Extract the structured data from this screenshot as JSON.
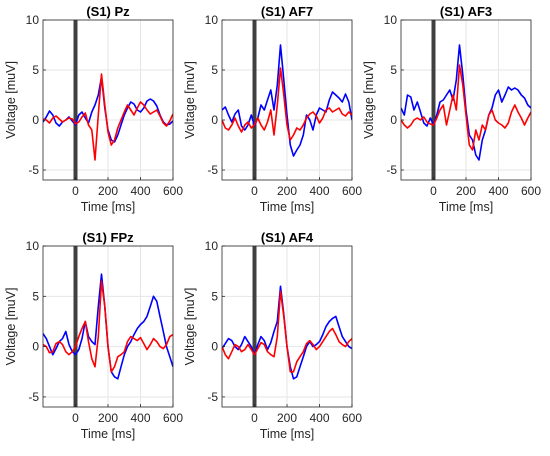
{
  "figure": {
    "background": "#ffffff",
    "grid_color": "#e6e6e6",
    "axis_color": "#262626",
    "marker_color": "#404040"
  },
  "chart_data": [
    {
      "type": "line",
      "title": "(S1) Pz",
      "xlabel": "Time [ms]",
      "ylabel": "Voltage [muV]",
      "xlim": [
        -200,
        600
      ],
      "ylim": [
        -6,
        10
      ],
      "xticks": [
        0,
        200,
        400,
        600
      ],
      "yticks": [
        -5,
        0,
        5,
        10
      ],
      "grid": true,
      "stimulus_marker_x": 0,
      "series": [
        {
          "color": "#0000ff",
          "x": [
            -200,
            -180,
            -160,
            -140,
            -120,
            -100,
            -80,
            -60,
            -40,
            -20,
            0,
            20,
            40,
            60,
            80,
            100,
            120,
            140,
            160,
            180,
            200,
            220,
            240,
            260,
            280,
            300,
            320,
            340,
            360,
            380,
            400,
            420,
            440,
            460,
            480,
            500,
            520,
            540,
            560,
            580,
            600
          ],
          "values": [
            -0.2,
            0.3,
            0.9,
            0.5,
            -0.3,
            -0.6,
            -0.2,
            0.0,
            0.3,
            -0.1,
            -0.5,
            0.5,
            0.8,
            0.2,
            -0.3,
            0.8,
            1.5,
            2.5,
            4.3,
            1.2,
            -1.0,
            -2.0,
            -2.2,
            -1.5,
            -0.5,
            0.5,
            1.2,
            1.8,
            1.6,
            1.0,
            0.8,
            1.2,
            1.9,
            2.1,
            1.9,
            1.4,
            0.5,
            -0.2,
            -0.5,
            -0.4,
            -0.1
          ]
        },
        {
          "color": "#ff0000",
          "x": [
            -200,
            -180,
            -160,
            -140,
            -120,
            -100,
            -80,
            -60,
            -40,
            -20,
            0,
            20,
            40,
            60,
            80,
            100,
            120,
            140,
            160,
            180,
            200,
            220,
            240,
            260,
            280,
            300,
            320,
            340,
            360,
            380,
            400,
            420,
            440,
            460,
            480,
            500,
            520,
            540,
            560,
            580,
            600
          ],
          "values": [
            0.1,
            0.0,
            -0.3,
            0.2,
            0.4,
            0.1,
            -0.2,
            0.0,
            0.2,
            0.1,
            -0.4,
            -0.2,
            0.3,
            0.7,
            -0.5,
            -1.0,
            -4.0,
            0.5,
            4.6,
            1.5,
            -1.2,
            -2.5,
            -2.0,
            -0.8,
            0.0,
            0.8,
            1.5,
            1.0,
            0.5,
            1.2,
            1.8,
            1.5,
            1.0,
            0.6,
            0.8,
            1.0,
            0.4,
            -0.3,
            -0.6,
            -0.1,
            0.6
          ]
        }
      ]
    },
    {
      "type": "line",
      "title": "(S1) AF7",
      "xlabel": "Time [ms]",
      "ylabel": "Voltage [muV]",
      "xlim": [
        -200,
        600
      ],
      "ylim": [
        -6,
        10
      ],
      "xticks": [
        0,
        200,
        400,
        600
      ],
      "yticks": [
        -5,
        0,
        5,
        10
      ],
      "grid": true,
      "stimulus_marker_x": 0,
      "series": [
        {
          "color": "#0000ff",
          "x": [
            -200,
            -180,
            -160,
            -140,
            -120,
            -100,
            -80,
            -60,
            -40,
            -20,
            0,
            20,
            40,
            60,
            80,
            100,
            120,
            140,
            160,
            180,
            200,
            220,
            240,
            260,
            280,
            300,
            320,
            340,
            360,
            380,
            400,
            420,
            440,
            460,
            480,
            500,
            520,
            540,
            560,
            580,
            600
          ],
          "values": [
            1.0,
            1.3,
            0.5,
            -0.2,
            0.6,
            1.0,
            -0.6,
            -1.0,
            -0.5,
            0.5,
            -0.6,
            0.2,
            1.5,
            1.0,
            2.0,
            3.0,
            1.0,
            3.5,
            7.5,
            4.0,
            0.5,
            -2.5,
            -3.6,
            -3.0,
            -2.5,
            -1.5,
            0.5,
            0.0,
            -1.0,
            0.5,
            1.2,
            1.0,
            0.8,
            2.0,
            2.8,
            2.5,
            2.2,
            1.8,
            2.6,
            1.8,
            0.0
          ]
        },
        {
          "color": "#ff0000",
          "x": [
            -200,
            -180,
            -160,
            -140,
            -120,
            -100,
            -80,
            -60,
            -40,
            -20,
            0,
            20,
            40,
            60,
            80,
            100,
            120,
            140,
            160,
            180,
            200,
            220,
            240,
            260,
            280,
            300,
            320,
            340,
            360,
            380,
            400,
            420,
            440,
            460,
            480,
            500,
            520,
            540,
            560,
            580,
            600
          ],
          "values": [
            0.0,
            -0.8,
            -1.0,
            -0.5,
            0.2,
            -0.6,
            -1.2,
            -0.5,
            -0.2,
            -0.8,
            -0.5,
            0.2,
            -0.5,
            -1.0,
            -0.2,
            1.0,
            -1.5,
            1.5,
            5.2,
            2.5,
            -0.5,
            -2.0,
            -1.5,
            -0.8,
            -1.0,
            -0.5,
            0.2,
            0.6,
            0.8,
            0.4,
            -0.3,
            0.2,
            1.0,
            1.2,
            0.8,
            1.0,
            1.2,
            0.6,
            0.4,
            0.8,
            0.5
          ]
        }
      ]
    },
    {
      "type": "line",
      "title": "(S1) AF3",
      "xlabel": "Time [ms]",
      "ylabel": "Voltage [muV]",
      "xlim": [
        -200,
        600
      ],
      "ylim": [
        -6,
        10
      ],
      "xticks": [
        0,
        200,
        400,
        600
      ],
      "yticks": [
        -5,
        0,
        5,
        10
      ],
      "grid": true,
      "stimulus_marker_x": 0,
      "series": [
        {
          "color": "#0000ff",
          "x": [
            -200,
            -180,
            -160,
            -140,
            -120,
            -100,
            -80,
            -60,
            -40,
            -20,
            0,
            20,
            40,
            60,
            80,
            100,
            120,
            140,
            160,
            180,
            200,
            220,
            240,
            260,
            280,
            300,
            320,
            340,
            360,
            380,
            400,
            420,
            440,
            460,
            480,
            500,
            520,
            540,
            560,
            580,
            600
          ],
          "values": [
            1.2,
            0.5,
            2.5,
            2.3,
            1.0,
            1.8,
            0.8,
            -0.3,
            -0.6,
            0.2,
            -0.5,
            0.5,
            1.8,
            2.0,
            2.5,
            3.0,
            2.0,
            4.0,
            7.5,
            4.5,
            1.0,
            -1.5,
            -2.0,
            -3.5,
            -4.0,
            -2.0,
            -1.0,
            0.5,
            1.2,
            2.5,
            3.0,
            1.8,
            2.5,
            3.3,
            3.0,
            3.2,
            3.0,
            2.5,
            2.2,
            1.5,
            1.2
          ]
        },
        {
          "color": "#ff0000",
          "x": [
            -200,
            -180,
            -160,
            -140,
            -120,
            -100,
            -80,
            -60,
            -40,
            -20,
            0,
            20,
            40,
            60,
            80,
            100,
            120,
            140,
            160,
            180,
            200,
            220,
            240,
            260,
            280,
            300,
            320,
            340,
            360,
            380,
            400,
            420,
            440,
            460,
            480,
            500,
            520,
            540,
            560,
            580,
            600
          ],
          "values": [
            0.0,
            -0.5,
            -0.8,
            -0.5,
            0.0,
            0.2,
            0.0,
            0.3,
            -0.2,
            -0.4,
            -0.5,
            0.2,
            1.0,
            1.5,
            -0.5,
            1.0,
            2.5,
            1.0,
            5.5,
            3.5,
            0.5,
            -2.5,
            -3.0,
            -1.0,
            -2.0,
            -0.5,
            -1.0,
            0.5,
            1.0,
            0.0,
            -0.3,
            -0.5,
            -0.8,
            -0.3,
            0.8,
            1.5,
            0.8,
            0.2,
            -0.5,
            0.2,
            0.8
          ]
        }
      ]
    },
    {
      "type": "line",
      "title": "(S1) FPz",
      "xlabel": "Time [ms]",
      "ylabel": "Voltage [muV]",
      "xlim": [
        -200,
        600
      ],
      "ylim": [
        -6,
        10
      ],
      "xticks": [
        0,
        200,
        400,
        600
      ],
      "yticks": [
        -5,
        0,
        5,
        10
      ],
      "grid": true,
      "stimulus_marker_x": 0,
      "series": [
        {
          "color": "#0000ff",
          "x": [
            -200,
            -180,
            -160,
            -140,
            -120,
            -100,
            -80,
            -60,
            -40,
            -20,
            0,
            20,
            40,
            60,
            80,
            100,
            120,
            140,
            160,
            180,
            200,
            220,
            240,
            260,
            280,
            300,
            320,
            340,
            360,
            380,
            400,
            420,
            440,
            460,
            480,
            500,
            520,
            540,
            560,
            580,
            600
          ],
          "values": [
            1.3,
            0.8,
            0.0,
            -0.8,
            -0.2,
            0.5,
            0.8,
            1.5,
            0.2,
            -0.5,
            -0.8,
            -0.3,
            0.8,
            2.5,
            1.0,
            0.5,
            0.2,
            4.0,
            7.2,
            4.0,
            0.0,
            -2.5,
            -3.0,
            -3.2,
            -2.0,
            -0.8,
            0.0,
            0.5,
            1.2,
            1.8,
            2.2,
            2.5,
            3.0,
            4.0,
            5.0,
            4.5,
            3.0,
            1.5,
            0.0,
            -1.0,
            -2.0
          ]
        },
        {
          "color": "#ff0000",
          "x": [
            -200,
            -180,
            -160,
            -140,
            -120,
            -100,
            -80,
            -60,
            -40,
            -20,
            0,
            20,
            40,
            60,
            80,
            100,
            120,
            140,
            160,
            180,
            200,
            220,
            240,
            260,
            280,
            300,
            320,
            340,
            360,
            380,
            400,
            420,
            440,
            460,
            480,
            500,
            520,
            540,
            560,
            580,
            600
          ],
          "values": [
            0.2,
            0.0,
            -0.6,
            -0.5,
            0.3,
            0.5,
            0.2,
            -0.5,
            -0.8,
            -0.5,
            0.0,
            1.0,
            1.8,
            2.5,
            0.5,
            -1.2,
            -2.0,
            1.0,
            6.5,
            4.0,
            0.0,
            -2.5,
            -2.0,
            -1.0,
            -0.8,
            -0.5,
            0.5,
            1.0,
            0.8,
            0.6,
            0.9,
            0.3,
            -0.3,
            0.2,
            0.8,
            0.5,
            0.0,
            -0.2,
            0.2,
            1.0,
            1.2
          ]
        }
      ]
    },
    {
      "type": "line",
      "title": "(S1) AF4",
      "xlabel": "Time [ms]",
      "ylabel": "Voltage [muV]",
      "xlim": [
        -200,
        600
      ],
      "ylim": [
        -6,
        10
      ],
      "xticks": [
        0,
        200,
        400,
        600
      ],
      "yticks": [
        -5,
        0,
        5,
        10
      ],
      "grid": true,
      "stimulus_marker_x": 0,
      "series": [
        {
          "color": "#0000ff",
          "x": [
            -200,
            -180,
            -160,
            -140,
            -120,
            -100,
            -80,
            -60,
            -40,
            -20,
            0,
            20,
            40,
            60,
            80,
            100,
            120,
            140,
            160,
            180,
            200,
            220,
            240,
            260,
            280,
            300,
            320,
            340,
            360,
            380,
            400,
            420,
            440,
            460,
            480,
            500,
            520,
            540,
            560,
            580,
            600
          ],
          "values": [
            -0.2,
            0.3,
            0.8,
            0.6,
            0.0,
            -0.3,
            0.2,
            1.0,
            0.5,
            0.0,
            -0.8,
            0.2,
            1.0,
            0.6,
            -0.3,
            0.4,
            1.5,
            2.5,
            6.0,
            3.2,
            0.0,
            -2.0,
            -3.2,
            -3.0,
            -2.0,
            -1.0,
            0.0,
            0.5,
            0.0,
            0.2,
            0.5,
            1.2,
            2.0,
            2.5,
            2.8,
            3.0,
            2.0,
            1.0,
            0.5,
            0.0,
            -0.2
          ]
        },
        {
          "color": "#ff0000",
          "x": [
            -200,
            -180,
            -160,
            -140,
            -120,
            -100,
            -80,
            -60,
            -40,
            -20,
            0,
            20,
            40,
            60,
            80,
            100,
            120,
            140,
            160,
            180,
            200,
            220,
            240,
            260,
            280,
            300,
            320,
            340,
            360,
            380,
            400,
            420,
            440,
            460,
            480,
            500,
            520,
            540,
            560,
            580,
            600
          ],
          "values": [
            0.0,
            -0.8,
            -1.2,
            -0.5,
            0.2,
            0.0,
            -0.5,
            -0.3,
            0.2,
            -0.3,
            -0.8,
            -0.2,
            0.4,
            0.2,
            -0.5,
            -0.8,
            -1.0,
            1.0,
            5.5,
            3.0,
            0.0,
            -2.5,
            -2.5,
            -1.5,
            -1.0,
            -0.5,
            0.3,
            0.6,
            0.2,
            -0.3,
            0.0,
            0.5,
            1.0,
            1.5,
            1.8,
            1.2,
            0.5,
            0.2,
            0.0,
            0.5,
            0.8
          ]
        }
      ]
    }
  ]
}
